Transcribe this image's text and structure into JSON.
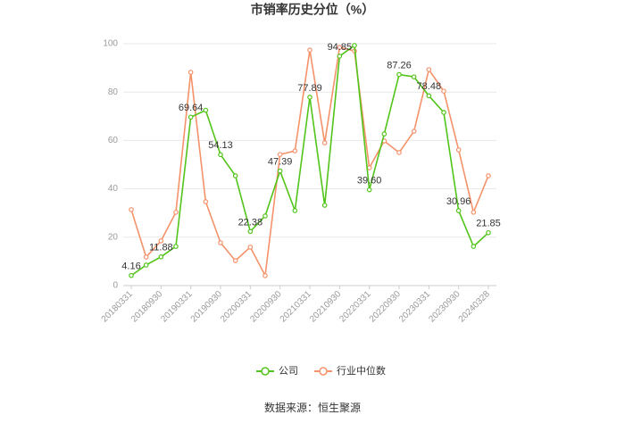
{
  "chart_data": {
    "type": "line",
    "title": "市销率历史分位（%）",
    "source": "数据来源：恒生聚源",
    "categories": [
      "20180331",
      null,
      "20180930",
      null,
      "20190331",
      null,
      "20190930",
      null,
      "20200331",
      null,
      "20200930",
      null,
      "20210331",
      null,
      "20210930",
      null,
      "20220331",
      null,
      "20220930",
      null,
      "20230331",
      null,
      "20230930",
      null,
      "20240328"
    ],
    "series": [
      {
        "name": "公司",
        "color": "#52c41a",
        "values": [
          4.16,
          8.5,
          11.88,
          16.2,
          69.64,
          72.5,
          54.13,
          45.4,
          22.38,
          28.8,
          47.39,
          31,
          77.89,
          33.2,
          94.85,
          99.3,
          39.6,
          62.7,
          87.26,
          86.3,
          78.48,
          71.6,
          30.96,
          16.2,
          21.85
        ],
        "value_labels": [
          "4.16",
          null,
          "11.88",
          null,
          "69.64",
          null,
          "54.13",
          null,
          "22.38",
          null,
          "47.39",
          null,
          "77.89",
          null,
          "94.85",
          null,
          "39.60",
          null,
          "87.26",
          null,
          "78.48",
          null,
          "30.96",
          null,
          "21.85"
        ]
      },
      {
        "name": "行业中位数",
        "color": "#f4926a",
        "values": [
          31.4,
          11.8,
          18.5,
          30.3,
          88.2,
          34.7,
          17.7,
          10.3,
          15.9,
          4.1,
          54.2,
          55.7,
          97.4,
          59,
          98.5,
          97,
          48.7,
          59.8,
          55,
          63.8,
          89.3,
          80.4,
          56.1,
          30.3,
          45.4
        ]
      }
    ],
    "ylim": [
      0,
      100
    ],
    "yticks": [
      0,
      20,
      40,
      60,
      80,
      100
    ],
    "grid": true,
    "legend": "bottom"
  }
}
